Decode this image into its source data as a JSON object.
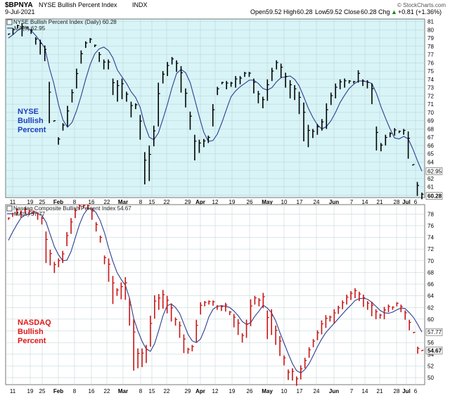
{
  "header": {
    "symbol": "$BPNYA",
    "name": "NYSE Bullish Percent Index",
    "exchange": "INDX",
    "date": "9-Jul-2021",
    "open_label": "Open",
    "open": "59.52",
    "high_label": "High",
    "high": "60.28",
    "low_label": "Low",
    "low": "59.52",
    "close_label": "Close",
    "close": "60.28",
    "chg_label": "Chg",
    "chg": "+0.81 (+1.36%)",
    "chg_arrow": "▲",
    "watermark": "© StockCharts.com"
  },
  "chart_data": [
    {
      "type": "ohlc",
      "title": "NYSE Bullish Percent Index (Daily) 60.28",
      "ma_label": "MA(5) 62.95",
      "annotation": [
        "NYSE",
        "Bullish",
        "Percent"
      ],
      "annotation_color": "#1f3fbf",
      "bar_color": "#000000",
      "ma_color": "#2c3f8f",
      "background": "#d8f4f7",
      "ylim": [
        59.7,
        81.3
      ],
      "y_ticks": [
        60,
        61,
        62,
        63,
        64,
        65,
        66,
        67,
        68,
        69,
        70,
        71,
        72,
        73,
        74,
        75,
        76,
        77,
        78,
        79,
        80,
        81
      ],
      "last_value_label": "60.28",
      "ma_value_label": "62.95",
      "bars": [
        [
          79.5,
          79.5
        ],
        [
          79.4,
          80.2
        ],
        [
          80.2,
          80.6
        ],
        [
          79.2,
          80.8
        ],
        [
          80.3,
          80.3
        ],
        [
          79.5,
          80.1
        ],
        [
          78.2,
          79.1
        ],
        [
          77.0,
          78.8
        ],
        [
          76.2,
          78.1
        ],
        [
          68.7,
          73.7
        ],
        [
          69.0,
          69.0
        ],
        [
          66.1,
          67.0
        ],
        [
          67.8,
          68.7
        ],
        [
          68.3,
          70.8
        ],
        [
          71.2,
          72.8
        ],
        [
          72.9,
          75.3
        ],
        [
          75.9,
          77.5
        ],
        [
          77.8,
          78.6
        ],
        [
          78.4,
          79.0
        ],
        [
          77.9,
          78.2
        ],
        [
          76.1,
          77.3
        ],
        [
          75.2,
          76.4
        ],
        [
          75.2,
          76.4
        ],
        [
          72.1,
          74.1
        ],
        [
          71.3,
          73.9
        ],
        [
          71.6,
          74.1
        ],
        [
          71.3,
          72.5
        ],
        [
          69.4,
          71.3
        ],
        [
          70.4,
          71.1
        ],
        [
          66.7,
          69.7
        ],
        [
          61.3,
          65.2
        ],
        [
          61.7,
          66.0
        ],
        [
          65.9,
          68.4
        ],
        [
          68.3,
          73.6
        ],
        [
          73.5,
          75.0
        ],
        [
          74.4,
          76.1
        ],
        [
          75.8,
          76.7
        ],
        [
          74.9,
          76.3
        ],
        [
          72.4,
          75.6
        ],
        [
          70.6,
          72.9
        ],
        [
          67.9,
          70.1
        ],
        [
          64.2,
          67.3
        ],
        [
          65.1,
          66.7
        ],
        [
          65.8,
          66.8
        ],
        [
          66.3,
          67.2
        ],
        [
          68.3,
          71.0
        ],
        [
          72.1,
          73.1
        ],
        [
          73.4,
          73.7
        ],
        [
          72.8,
          73.8
        ],
        [
          73.1,
          73.7
        ],
        [
          73.0,
          74.4
        ],
        [
          73.4,
          74.4
        ],
        [
          74.3,
          74.9
        ],
        [
          74.3,
          74.9
        ],
        [
          72.3,
          74.1
        ],
        [
          71.1,
          72.6
        ],
        [
          70.5,
          71.9
        ],
        [
          71.4,
          74.0
        ],
        [
          73.8,
          75.4
        ],
        [
          75.2,
          76.3
        ],
        [
          74.2,
          75.9
        ],
        [
          73.0,
          74.8
        ],
        [
          71.7,
          73.9
        ],
        [
          71.5,
          73.3
        ],
        [
          69.8,
          72.5
        ],
        [
          66.5,
          71.2
        ],
        [
          65.8,
          68.5
        ],
        [
          66.9,
          68.0
        ],
        [
          67.3,
          68.6
        ],
        [
          67.8,
          69.2
        ],
        [
          68.0,
          71.1
        ],
        [
          70.9,
          72.4
        ],
        [
          71.7,
          73.5
        ],
        [
          72.8,
          74.0
        ],
        [
          73.0,
          74.1
        ],
        [
          73.5,
          73.9
        ],
        [
          73.5,
          73.8
        ],
        [
          73.6,
          75.1
        ],
        [
          73.2,
          74.0
        ],
        [
          72.9,
          73.9
        ],
        [
          71.0,
          73.5
        ],
        [
          65.4,
          68.3
        ],
        [
          65.3,
          66.3
        ],
        [
          66.0,
          67.3
        ],
        [
          67.0,
          67.6
        ],
        [
          67.2,
          68.1
        ],
        [
          67.5,
          67.8
        ],
        [
          67.3,
          68.0
        ],
        [
          64.4,
          67.7
        ],
        [
          63.7,
          63.7
        ],
        [
          59.9,
          61.6
        ],
        [
          59.5,
          60.3
        ]
      ],
      "ma": [
        79.0,
        79.4,
        79.9,
        80.2,
        80.2,
        79.9,
        79.3,
        78.6,
        77.8,
        75.4,
        73.5,
        71.0,
        69.1,
        68.2,
        68.8,
        70.2,
        72.0,
        74.0,
        75.8,
        77.1,
        77.7,
        77.9,
        77.5,
        76.6,
        75.1,
        74.3,
        73.5,
        72.5,
        71.8,
        70.6,
        68.5,
        67.0,
        66.7,
        67.5,
        69.2,
        71.0,
        73.0,
        74.7,
        75.2,
        74.8,
        73.6,
        71.6,
        69.5,
        67.6,
        66.5,
        66.6,
        67.4,
        68.8,
        70.4,
        71.9,
        72.6,
        73.1,
        73.5,
        73.9,
        73.9,
        73.5,
        72.9,
        72.7,
        73.0,
        73.7,
        74.2,
        74.3,
        74.4,
        74.0,
        73.2,
        71.9,
        70.5,
        69.4,
        68.5,
        68.0,
        68.3,
        69.0,
        70.0,
        71.2,
        72.1,
        72.9,
        73.4,
        73.8,
        73.8,
        73.7,
        73.5,
        72.3,
        70.7,
        69.3,
        68.0,
        66.9,
        66.8,
        67.1,
        66.8,
        65.6,
        64.2,
        62.9
      ]
    },
    {
      "type": "ohlc",
      "title": "Nasdaq Composite Bullish Percent Index 54.67",
      "ma_label": "MA(5) 57.77",
      "annotation": [
        "NASDAQ",
        "Bullish",
        "Percent"
      ],
      "annotation_color": "#e01818",
      "bar_color": "#c81414",
      "ma_color": "#2c3f8f",
      "background": "#ffffff",
      "ylim": [
        48.8,
        79.6
      ],
      "y_ticks": [
        50,
        52,
        54,
        56,
        58,
        60,
        62,
        64,
        66,
        68,
        70,
        72,
        74,
        76,
        78
      ],
      "last_value_label": "54.67",
      "ma_value_label": "57.77",
      "bars": [
        [
          77.0,
          77.4
        ],
        [
          77.5,
          78.2
        ],
        [
          77.8,
          79.0
        ],
        [
          77.4,
          78.6
        ],
        [
          78.0,
          79.1
        ],
        [
          77.8,
          78.7
        ],
        [
          77.9,
          78.6
        ],
        [
          77.0,
          78.3
        ],
        [
          76.2,
          77.6
        ],
        [
          69.6,
          75.0
        ],
        [
          69.2,
          71.9
        ],
        [
          67.9,
          69.8
        ],
        [
          68.9,
          70.4
        ],
        [
          69.6,
          71.7
        ],
        [
          72.5,
          74.9
        ],
        [
          74.6,
          77.3
        ],
        [
          77.3,
          79.0
        ],
        [
          78.7,
          79.6
        ],
        [
          79.0,
          79.6
        ],
        [
          78.8,
          79.6
        ],
        [
          77.0,
          79.0
        ],
        [
          75.0,
          76.6
        ],
        [
          73.1,
          74.3
        ],
        [
          69.4,
          70.9
        ],
        [
          66.4,
          70.4
        ],
        [
          62.6,
          67.4
        ],
        [
          64.0,
          65.3
        ],
        [
          63.4,
          66.3
        ],
        [
          63.3,
          67.2
        ],
        [
          58.9,
          63.6
        ],
        [
          51.2,
          60.0
        ],
        [
          51.6,
          55.0
        ],
        [
          51.8,
          55.0
        ],
        [
          52.5,
          55.6
        ],
        [
          55.3,
          60.6
        ],
        [
          60.1,
          64.1
        ],
        [
          61.6,
          64.3
        ],
        [
          61.8,
          65.0
        ],
        [
          61.0,
          64.0
        ],
        [
          59.6,
          62.7
        ],
        [
          58.9,
          60.3
        ],
        [
          56.8,
          59.6
        ],
        [
          54.2,
          57.4
        ],
        [
          54.1,
          55.1
        ],
        [
          54.5,
          55.6
        ],
        [
          56.1,
          59.9
        ],
        [
          60.8,
          62.9
        ],
        [
          62.2,
          63.1
        ],
        [
          62.5,
          63.2
        ],
        [
          62.3,
          63.2
        ],
        [
          61.6,
          62.4
        ],
        [
          61.4,
          62.4
        ],
        [
          61.3,
          62.8
        ],
        [
          60.7,
          61.4
        ],
        [
          58.6,
          60.9
        ],
        [
          57.3,
          60.0
        ],
        [
          56.0,
          57.6
        ],
        [
          56.8,
          59.9
        ],
        [
          58.8,
          63.4
        ],
        [
          62.5,
          64.0
        ],
        [
          62.2,
          63.6
        ],
        [
          61.9,
          64.5
        ],
        [
          56.6,
          61.5
        ],
        [
          57.3,
          61.7
        ],
        [
          55.6,
          58.9
        ],
        [
          53.7,
          57.1
        ],
        [
          52.1,
          53.8
        ],
        [
          49.6,
          51.4
        ],
        [
          49.5,
          51.6
        ],
        [
          48.6,
          50.2
        ],
        [
          49.7,
          52.1
        ],
        [
          51.6,
          53.4
        ],
        [
          53.4,
          55.2
        ],
        [
          55.2,
          56.6
        ],
        [
          56.4,
          58.1
        ],
        [
          57.4,
          59.8
        ],
        [
          58.5,
          60.7
        ],
        [
          59.6,
          60.6
        ],
        [
          59.2,
          61.7
        ],
        [
          60.9,
          62.3
        ],
        [
          61.7,
          63.2
        ],
        [
          62.5,
          64.2
        ],
        [
          63.3,
          64.8
        ],
        [
          63.6,
          65.3
        ],
        [
          63.1,
          64.7
        ],
        [
          62.1,
          64.2
        ],
        [
          61.6,
          63.1
        ],
        [
          60.5,
          63.0
        ],
        [
          60.0,
          61.7
        ],
        [
          60.1,
          60.9
        ],
        [
          60.0,
          62.1
        ],
        [
          61.2,
          62.5
        ],
        [
          61.6,
          62.2
        ],
        [
          62.2,
          62.9
        ],
        [
          61.2,
          62.5
        ],
        [
          59.9,
          61.5
        ],
        [
          58.1,
          59.9
        ],
        [
          57.6,
          57.8
        ],
        [
          54.1,
          55.3
        ],
        [
          54.6,
          54.7
        ]
      ],
      "ma": [
        73.5,
        74.9,
        76.2,
        77.3,
        77.9,
        78.0,
        78.2,
        78.1,
        77.8,
        76.6,
        74.5,
        72.4,
        71.0,
        70.0,
        70.1,
        71.6,
        73.9,
        76.2,
        77.9,
        78.9,
        78.9,
        78.2,
        76.8,
        74.8,
        72.2,
        69.9,
        68.0,
        66.8,
        65.8,
        63.6,
        60.1,
        58.0,
        56.2,
        54.9,
        54.5,
        55.8,
        58.1,
        60.6,
        62.3,
        62.6,
        62.0,
        61.0,
        59.2,
        57.4,
        56.3,
        56.0,
        56.6,
        58.3,
        60.4,
        61.7,
        62.2,
        62.3,
        62.2,
        62.0,
        61.4,
        60.6,
        59.6,
        59.1,
        59.4,
        60.5,
        61.4,
        62.4,
        61.9,
        61.1,
        59.7,
        57.7,
        55.9,
        54.1,
        52.4,
        51.2,
        50.8,
        51.4,
        52.4,
        53.8,
        55.3,
        56.6,
        57.7,
        58.5,
        59.3,
        60.1,
        60.9,
        61.7,
        62.4,
        63.2,
        63.5,
        63.6,
        63.4,
        62.9,
        62.2,
        61.5,
        61.1,
        61.0,
        61.2,
        61.6,
        61.9,
        61.8,
        61.1,
        60.3,
        59.1,
        57.8
      ]
    }
  ],
  "x_axis": {
    "tick_labels": [
      "11",
      "19",
      "25",
      "Feb",
      "8",
      "16",
      "22",
      "Mar",
      "8",
      "15",
      "22",
      "29",
      "Apr",
      "12",
      "19",
      "26",
      "May",
      "10",
      "17",
      "24",
      "Jun",
      "7",
      "14",
      "21",
      "28",
      "Jul",
      "6"
    ],
    "bold_labels": [
      "Feb",
      "Mar",
      "Apr",
      "May",
      "Jun",
      "Jul"
    ]
  }
}
